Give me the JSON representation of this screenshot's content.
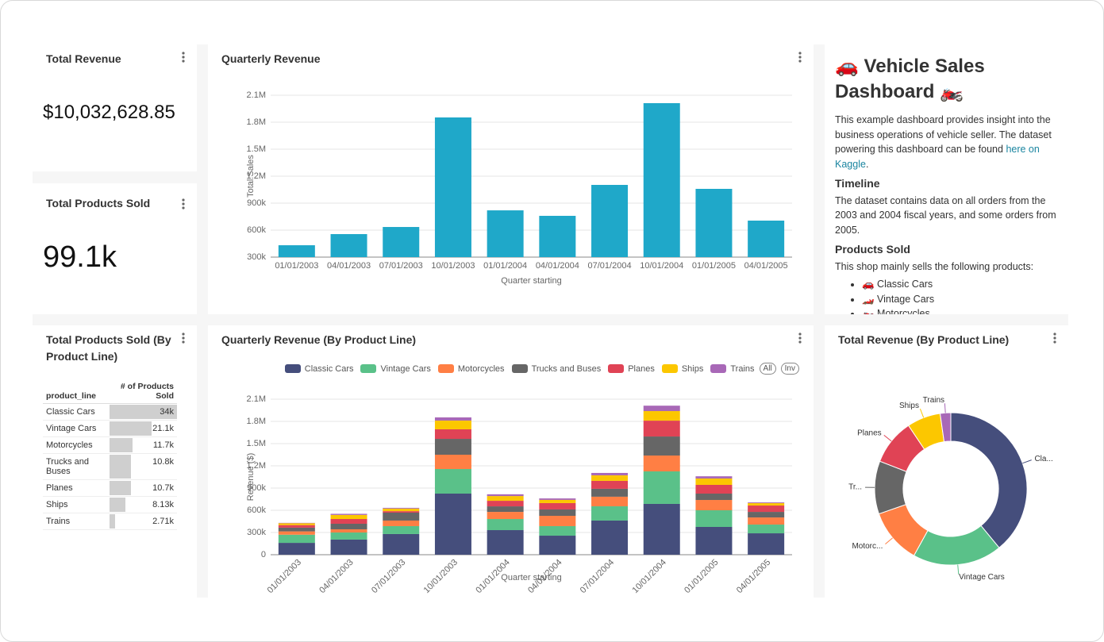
{
  "kpis": [
    {
      "title": "Total Revenue",
      "value": "$10,032,628.85"
    },
    {
      "title": "Total Products Sold",
      "value": "99.1k"
    }
  ],
  "table": {
    "title": "Total Products Sold (By Product Line)",
    "columns": [
      "product_line",
      "# of Products Sold"
    ],
    "rows": [
      "Classic Cars",
      "Vintage Cars",
      "Motorcycles",
      "Trucks and Buses",
      "Planes",
      "Ships",
      "Trains"
    ],
    "values": [
      34000,
      21100,
      11700,
      10800,
      10700,
      8130,
      2710
    ],
    "value_labels": [
      "34k",
      "21.1k",
      "11.7k",
      "10.8k",
      "10.7k",
      "8.13k",
      "2.71k"
    ]
  },
  "text_panel": {
    "title": "🚗 Vehicle Sales Dashboard 🏍️",
    "intro": "This example dashboard provides insight into the business operations of vehicle seller. The dataset powering this dashboard can be found ",
    "link": "here on Kaggle",
    "intro_end": ".",
    "sections": [
      {
        "heading": "Timeline",
        "text": "The dataset contains data on all orders from the 2003 and 2004 fiscal years, and some orders from 2005."
      },
      {
        "heading": "Products Sold",
        "text": "This shop mainly sells the following products:"
      }
    ],
    "list": [
      "🚗 Classic Cars",
      "🏎️ Vintage Cars",
      "🏍️ Motorcycles"
    ]
  },
  "chart_data": [
    {
      "type": "bar",
      "title": "Quarterly Revenue",
      "x_label": "Quarter starting",
      "y_label": "Total Sales",
      "categories": [
        "01/01/2003",
        "04/01/2003",
        "07/01/2003",
        "10/01/2003",
        "01/01/2004",
        "04/01/2004",
        "07/01/2004",
        "10/01/2004",
        "01/01/2005",
        "04/01/2005"
      ],
      "values": [
        432000,
        556000,
        635000,
        1853000,
        820000,
        759000,
        1103000,
        2012000,
        1059000,
        706000
      ],
      "color": "#1fa8c9",
      "ylim": [
        300000,
        2100000
      ],
      "yticks": [
        {
          "value": 300000,
          "label": "300k"
        },
        {
          "value": 600000,
          "label": "600k"
        },
        {
          "value": 900000,
          "label": "900k"
        },
        {
          "value": 1200000,
          "label": "1.2M"
        },
        {
          "value": 1500000,
          "label": "1.5M"
        },
        {
          "value": 1800000,
          "label": "1.8M"
        },
        {
          "value": 2100000,
          "label": "2.1M"
        }
      ],
      "grid": true
    },
    {
      "type": "stacked_bar",
      "title": "Quarterly Revenue (By Product Line)",
      "x_label": "Quarter starting",
      "y_label": "Revenue ($)",
      "legend_buttons": [
        "All",
        "Inv"
      ],
      "categories": [
        "01/01/2003",
        "04/01/2003",
        "07/01/2003",
        "10/01/2003",
        "01/01/2004",
        "04/01/2004",
        "07/01/2004",
        "10/01/2004",
        "01/01/2005",
        "04/01/2005"
      ],
      "series": [
        {
          "name": "Classic Cars",
          "color": "#454e7c",
          "values": [
            160000,
            204000,
            279000,
            825000,
            332000,
            257000,
            461000,
            686000,
            375000,
            289000
          ]
        },
        {
          "name": "Vintage Cars",
          "color": "#5ac189",
          "values": [
            110000,
            96000,
            107000,
            332000,
            150000,
            129000,
            193000,
            439000,
            225000,
            118000
          ]
        },
        {
          "name": "Motorcycles",
          "color": "#ff7f44",
          "values": [
            45000,
            43000,
            75000,
            193000,
            96000,
            139000,
            129000,
            214000,
            139000,
            96000
          ]
        },
        {
          "name": "Trucks and Buses",
          "color": "#666666",
          "values": [
            50000,
            75000,
            107000,
            214000,
            75000,
            86000,
            107000,
            257000,
            86000,
            75000
          ]
        },
        {
          "name": "Planes",
          "color": "#e04355",
          "values": [
            35000,
            64000,
            20000,
            129000,
            75000,
            86000,
            107000,
            214000,
            118000,
            86000
          ]
        },
        {
          "name": "Ships",
          "color": "#fcc700",
          "values": [
            25000,
            55000,
            35000,
            118000,
            64000,
            43000,
            75000,
            129000,
            86000,
            32000
          ]
        },
        {
          "name": "Trains",
          "color": "#a868b7",
          "values": [
            5000,
            15000,
            10000,
            43000,
            24000,
            20000,
            32000,
            73000,
            30000,
            10000
          ]
        }
      ],
      "ylim": [
        0,
        2100000
      ],
      "yticks": [
        0,
        {
          "value": 300000,
          "label": "300k"
        },
        {
          "value": 600000,
          "label": "600k"
        },
        {
          "value": 900000,
          "label": "900k"
        },
        {
          "value": 1200000,
          "label": "1.2M"
        },
        {
          "value": 1500000,
          "label": "1.5M"
        },
        {
          "value": 1800000,
          "label": "1.8M"
        },
        {
          "value": 2100000,
          "label": "2.1M"
        }
      ],
      "grid": true
    },
    {
      "type": "donut",
      "title": "Total Revenue (By Product Line)",
      "categories": [
        "Cla...",
        "Vintage Cars",
        "Motorc...",
        "Tr...",
        "Planes",
        "Ships",
        "Trains"
      ],
      "values": [
        3919616,
        1903151,
        1166388,
        1127790,
        975004,
        714437,
        226243
      ],
      "colors": [
        "#454e7c",
        "#5ac189",
        "#ff7f44",
        "#666666",
        "#e04355",
        "#fcc700",
        "#a868b7"
      ]
    }
  ]
}
